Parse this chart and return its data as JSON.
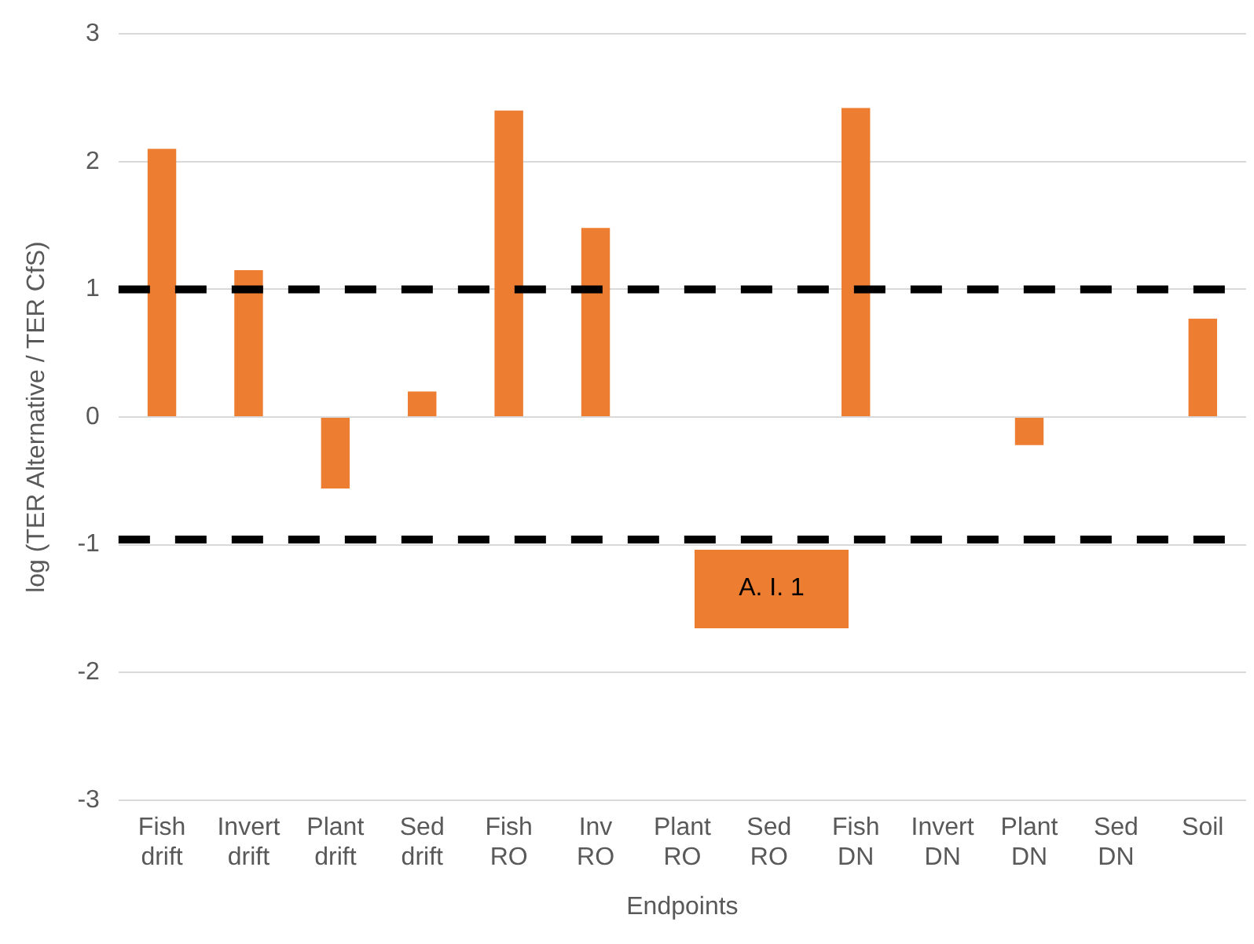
{
  "chart_data": {
    "type": "bar",
    "xlabel": "Endpoints",
    "ylabel": "log (TER Alternative / TER CfS)",
    "categories": [
      "Fish\ndrift",
      "Invert\ndrift",
      "Plant\ndrift",
      "Sed\ndrift",
      "Fish\nRO",
      "Inv\nRO",
      "Plant\nRO",
      "Sed\nRO",
      "Fish\nDN",
      "Invert\nDN",
      "Plant\nDN",
      "Sed\nDN",
      "Soil"
    ],
    "values": [
      2.1,
      1.15,
      -0.56,
      0.2,
      2.4,
      1.48,
      0,
      0,
      2.42,
      0,
      -0.22,
      0,
      0.77
    ],
    "color": "#ed7d31",
    "ylim": [
      -3,
      3
    ],
    "yticks": [
      -3,
      -2,
      -1,
      0,
      1,
      2,
      3
    ],
    "grid": "y",
    "ref_lines": [
      {
        "axis": "y",
        "value": 1,
        "color": "#000000",
        "line_style": "dashed"
      },
      {
        "axis": "y",
        "value": -0.96,
        "color": "#000000",
        "line_style": "dashed"
      }
    ],
    "annotations": [
      "A. I. 1"
    ]
  }
}
